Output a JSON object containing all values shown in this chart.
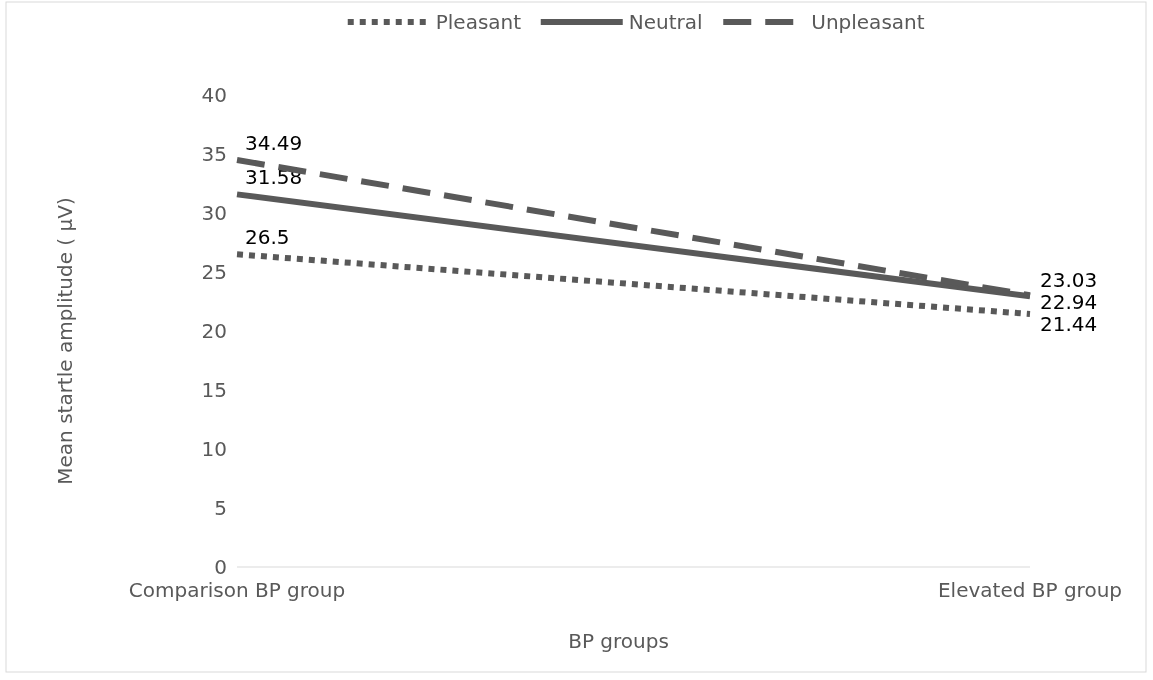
{
  "chart_data": {
    "type": "line",
    "xlabel": "BP groups",
    "ylabel": "Mean startle amplitude ( µV)",
    "categories": [
      "Comparison BP group",
      "Elevated BP group"
    ],
    "series": [
      {
        "name": "Pleasant",
        "color": "#595959",
        "values": [
          26.5,
          21.44
        ],
        "line_style": "dotted"
      },
      {
        "name": "Neutral",
        "color": "#595959",
        "values": [
          31.58,
          22.94
        ],
        "line_style": "solid"
      },
      {
        "name": "Unpleasant",
        "color": "#595959",
        "values": [
          34.49,
          23.03
        ],
        "line_style": "dashed"
      }
    ],
    "ylim": [
      0,
      40
    ],
    "yticks": [
      0,
      5,
      10,
      15,
      20,
      25,
      30,
      35,
      40
    ],
    "grid": false,
    "legend": "top",
    "data_labels": true,
    "marker": "none"
  }
}
